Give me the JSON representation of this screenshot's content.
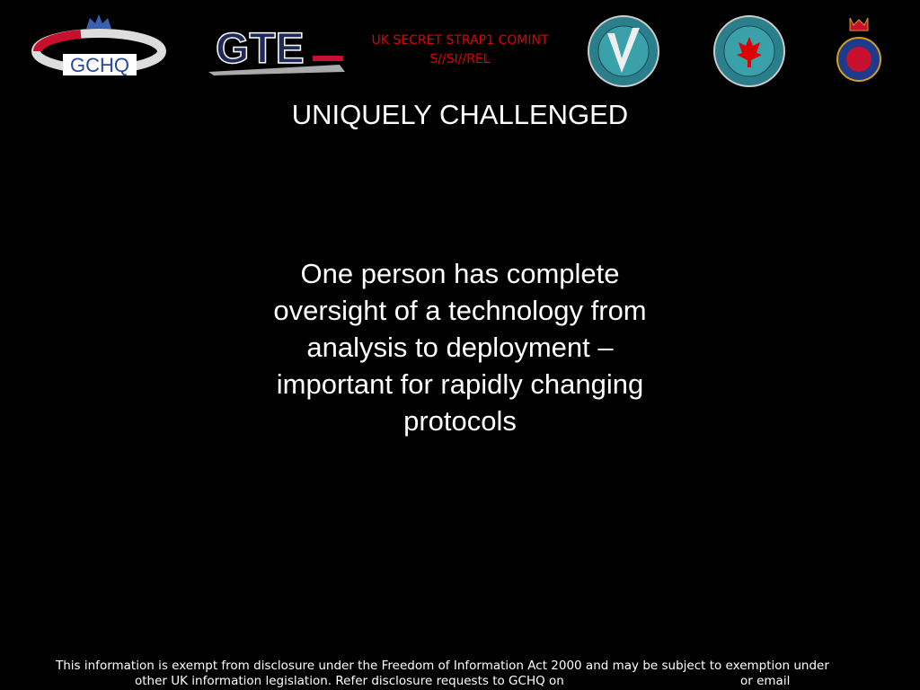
{
  "header": {
    "logos": {
      "gchq": "GCHQ",
      "gte": "GTE"
    },
    "classification": [
      "UK SECRET STRAP1 COMINT",
      "S//SI//REL"
    ]
  },
  "slide": {
    "title": "UNIQUELY CHALLENGED",
    "body": [
      "One person has complete",
      "oversight of a technology from",
      "analysis to deployment –",
      "important for rapidly changing",
      "protocols"
    ]
  },
  "footer": {
    "lines": [
      "This information is exempt from disclosure under the Freedom of Information Act 2000 and may be subject to exemption under",
      "other UK information legislation. Refer disclosure requests to GCHQ on",
      "or email"
    ]
  }
}
